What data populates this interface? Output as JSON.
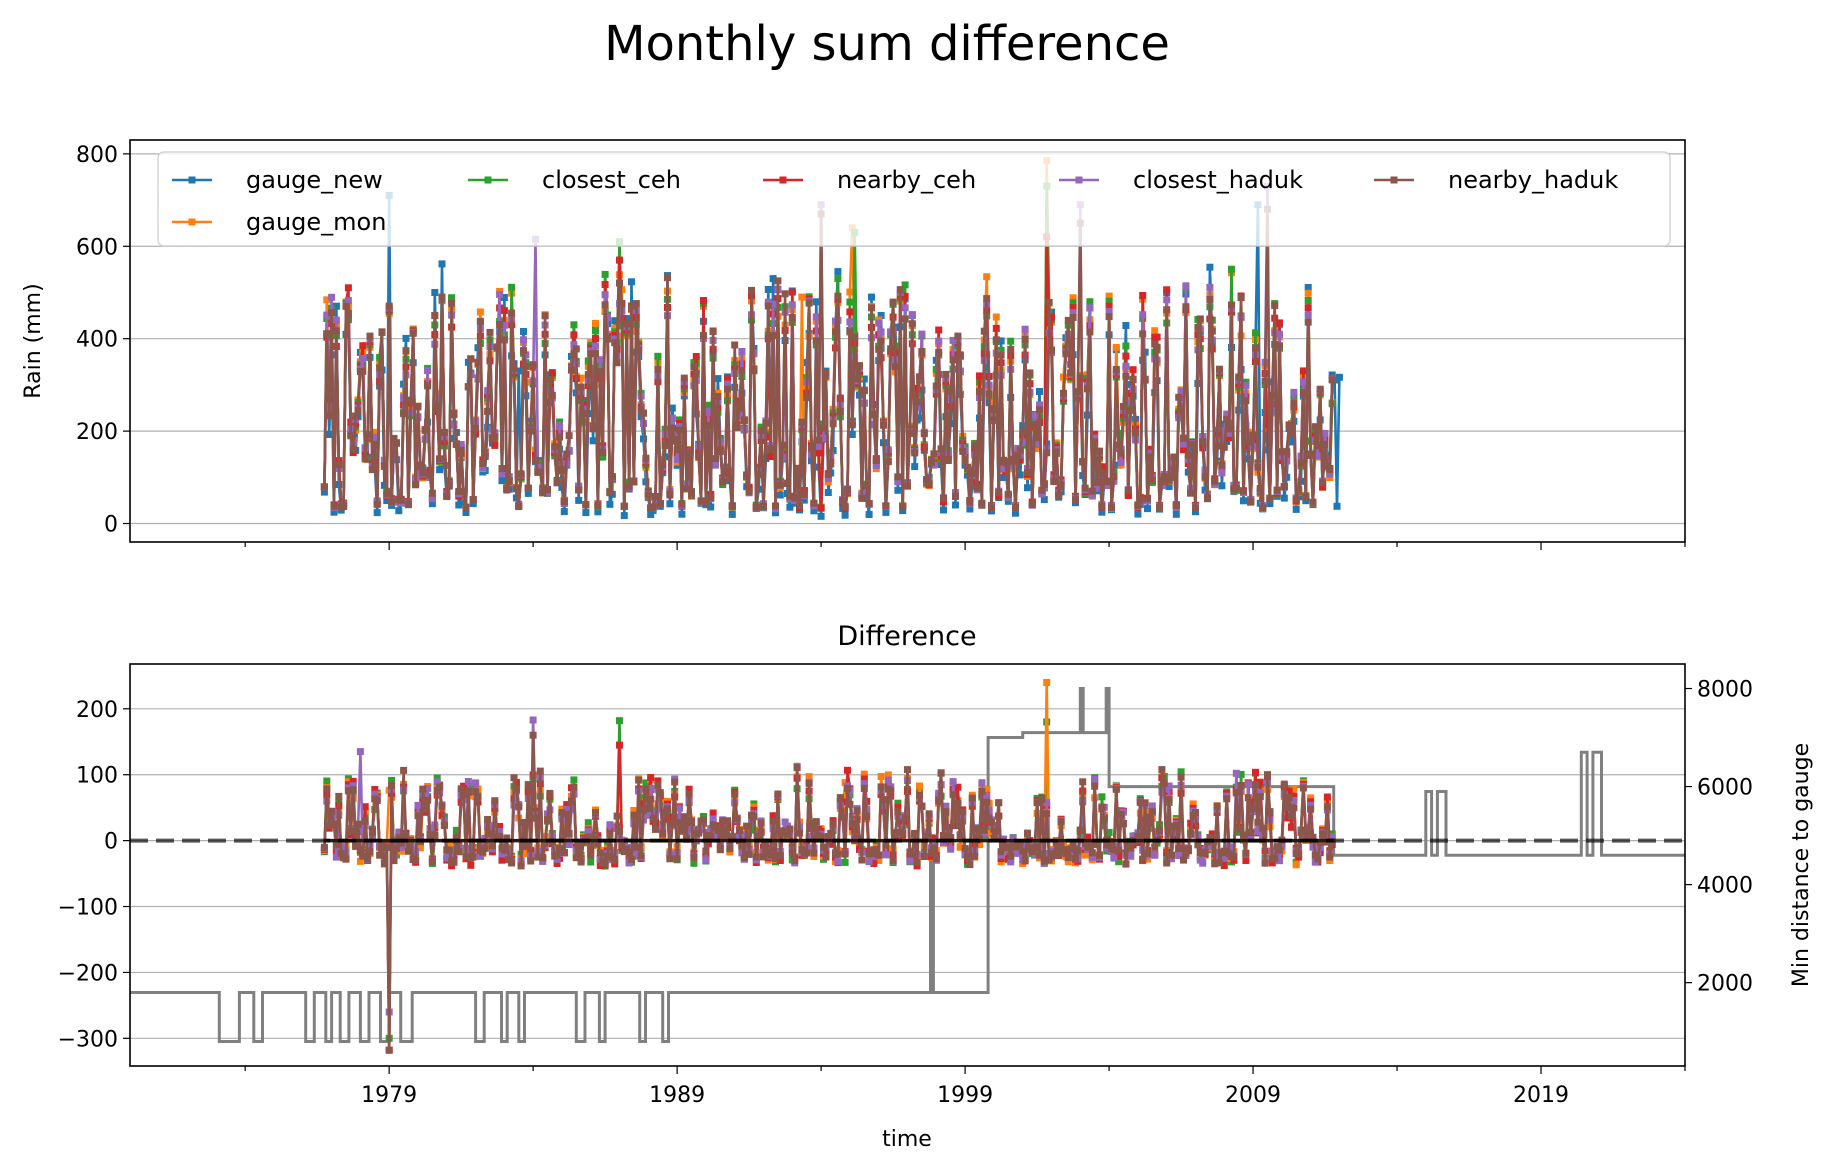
{
  "figure": {
    "suptitle": "Monthly sum difference"
  },
  "chart_data": [
    {
      "type": "line",
      "title": "",
      "xlabel": "",
      "ylabel": "Rain (mm)",
      "xlim": [
        1970,
        2024
      ],
      "ylim": [
        -40,
        830
      ],
      "yticks": [
        0,
        200,
        400,
        600,
        800
      ],
      "grid": "y",
      "legend": "top, 5 columns",
      "start": 1976.75,
      "end": 2011.75,
      "series": [
        {
          "name": "gauge_new",
          "color": "#1f77b4",
          "end": 2012.0,
          "peaks": [
            [
              1979.0,
              710
            ],
            [
              1980.6,
              500
            ],
            [
              1983.5,
              330
            ],
            [
              2009.2,
              690
            ]
          ]
        },
        {
          "name": "gauge_mon",
          "color": "#ff7f0e",
          "end": 2011.8,
          "peaks": [
            [
              2001.8,
              785
            ],
            [
              1993.3,
              490
            ],
            [
              1995.1,
              640
            ]
          ]
        },
        {
          "name": "closest_ceh",
          "color": "#2ca02c",
          "end": 2011.8,
          "peaks": [
            [
              2001.8,
              730
            ],
            [
              1987.0,
              610
            ],
            [
              1995.2,
              630
            ]
          ]
        },
        {
          "name": "nearby_ceh",
          "color": "#d62728",
          "end": 2011.8,
          "peaks": [
            [
              2001.8,
              620
            ],
            [
              1987.0,
              570
            ]
          ]
        },
        {
          "name": "closest_haduk",
          "color": "#9467bd",
          "end": 2011.8,
          "peaks": [
            [
              1994.0,
              690
            ],
            [
              2003.0,
              690
            ],
            [
              2009.5,
              730
            ],
            [
              1984.1,
              615
            ]
          ]
        },
        {
          "name": "nearby_haduk",
          "color": "#8c564b",
          "end": 2011.8,
          "peaks": [
            [
              1994.0,
              670
            ],
            [
              2003.0,
              650
            ],
            [
              2009.5,
              680
            ]
          ]
        }
      ]
    },
    {
      "type": "line",
      "title": "Difference",
      "xlabel": "time",
      "ylabel": "",
      "ylabel_right": "Min distance to gauge",
      "xlim": [
        1970,
        2024
      ],
      "xticks": [
        1979,
        1989,
        1999,
        2009,
        2019
      ],
      "ylim": [
        -342,
        268
      ],
      "yticks": [
        -300,
        -200,
        -100,
        0,
        100,
        200
      ],
      "y2lim": [
        300,
        8500
      ],
      "y2ticks": [
        2000,
        4000,
        6000,
        8000
      ],
      "grid": "y",
      "reference_line": 0,
      "series": [
        {
          "name": "closest_ceh",
          "color": "#2ca02c",
          "peaks": [
            [
              1979.0,
              -300
            ],
            [
              1987.0,
              182
            ],
            [
              2001.8,
              180
            ]
          ]
        },
        {
          "name": "gauge_mon",
          "color": "#ff7f0e",
          "peaks": [
            [
              2001.8,
              240
            ],
            [
              1994.8,
              88
            ]
          ]
        },
        {
          "name": "nearby_ceh",
          "color": "#d62728",
          "peaks": [
            [
              1979.0,
              -318
            ],
            [
              1987.0,
              145
            ]
          ]
        },
        {
          "name": "closest_haduk",
          "color": "#9467bd",
          "peaks": [
            [
              1978.0,
              135
            ],
            [
              1984.0,
              183
            ],
            [
              1979.0,
              -260
            ]
          ]
        },
        {
          "name": "nearby_haduk",
          "color": "#8c564b",
          "peaks": [
            [
              1979.0,
              -318
            ],
            [
              1984.0,
              160
            ]
          ]
        }
      ],
      "distance_series": {
        "color": "#808080",
        "points": [
          [
            1970.0,
            1800
          ],
          [
            1973.1,
            1800
          ],
          [
            1973.1,
            800
          ],
          [
            1990.0,
            800
          ],
          [
            1990.0,
            1800
          ],
          [
            1997.8,
            1800
          ],
          [
            1997.8,
            5000
          ],
          [
            1997.9,
            5000
          ],
          [
            1997.9,
            1800
          ],
          [
            1999.8,
            1800
          ],
          [
            1999.8,
            7000
          ],
          [
            2001.0,
            7000
          ],
          [
            2001.0,
            7100
          ],
          [
            2003.0,
            7100
          ],
          [
            2003.0,
            8000
          ],
          [
            2003.1,
            8000
          ],
          [
            2003.1,
            7100
          ],
          [
            2003.9,
            7100
          ],
          [
            2003.9,
            8000
          ],
          [
            2004.0,
            8000
          ],
          [
            2004.0,
            7100
          ],
          [
            2004.0,
            6000
          ],
          [
            2011.8,
            6000
          ],
          [
            2011.8,
            4600
          ],
          [
            2015.0,
            4600
          ],
          [
            2015.0,
            5900
          ],
          [
            2015.2,
            5900
          ],
          [
            2015.2,
            4600
          ],
          [
            2015.4,
            4600
          ],
          [
            2015.4,
            5900
          ],
          [
            2015.7,
            5900
          ],
          [
            2015.7,
            4600
          ],
          [
            2020.4,
            4600
          ],
          [
            2020.4,
            6700
          ],
          [
            2020.6,
            6700
          ],
          [
            2020.6,
            4600
          ],
          [
            2020.8,
            4600
          ],
          [
            2020.8,
            6700
          ],
          [
            2021.1,
            6700
          ],
          [
            2021.1,
            4600
          ],
          [
            2024.0,
            4600
          ]
        ]
      }
    }
  ]
}
